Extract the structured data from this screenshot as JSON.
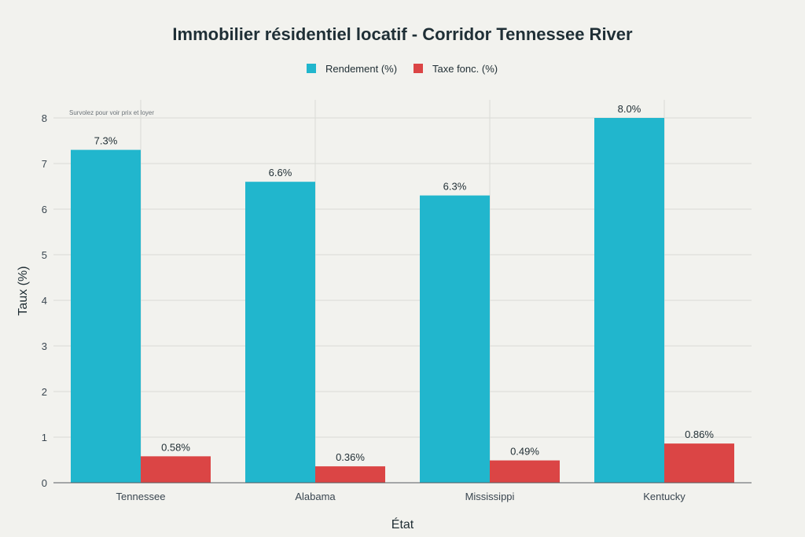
{
  "chart_data": {
    "type": "bar",
    "title": "Immobilier résidentiel locatif - Corridor Tennessee River",
    "annotation": "Survolez pour voir prix et loyer",
    "xlabel": "État",
    "ylabel": "Taux (%)",
    "ylim": [
      0,
      8.5
    ],
    "yticks": [
      0,
      1,
      2,
      3,
      4,
      5,
      6,
      7,
      8
    ],
    "grid": true,
    "legend_position": "top-center",
    "categories": [
      "Tennessee",
      "Alabama",
      "Mississippi",
      "Kentucky"
    ],
    "series": [
      {
        "name": "Rendement (%)",
        "color": "#21b6cd",
        "values": [
          7.3,
          6.6,
          6.3,
          8.0
        ],
        "labels": [
          "7.3%",
          "6.6%",
          "6.3%",
          "8.0%"
        ]
      },
      {
        "name": "Taxe fonc. (%)",
        "color": "#db4545",
        "values": [
          0.58,
          0.36,
          0.49,
          0.86
        ],
        "labels": [
          "0.58%",
          "0.36%",
          "0.49%",
          "0.86%"
        ]
      }
    ]
  }
}
